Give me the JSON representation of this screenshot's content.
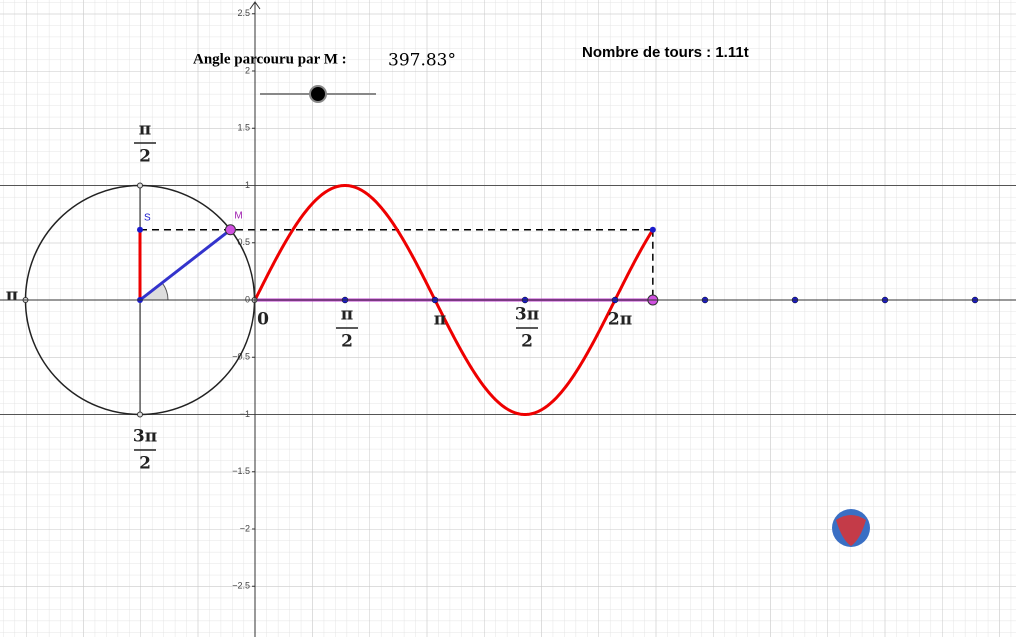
{
  "header": {
    "angle_label": "Angle parcouru par M :",
    "angle_text": "397.83°",
    "angle_degrees": 397.83,
    "turns_text": "Nombre de tours : 1.11t"
  },
  "yticks": [
    2.5,
    2,
    1.5,
    1,
    0.5,
    0,
    {
      "value": -0.5,
      "label": "−0.5"
    },
    {
      "value": -1,
      "label": "−1"
    },
    {
      "value": -1.5,
      "label": "−1.5"
    },
    {
      "value": -2,
      "label": "−2"
    },
    {
      "value": -2.5,
      "label": "−2.5"
    }
  ],
  "guide_lines": [
    1,
    -1
  ],
  "x_labels": [
    {
      "value": 0,
      "text": "0"
    },
    {
      "value": 90,
      "num": "π",
      "den": "2"
    },
    {
      "value": 180,
      "text": "π"
    },
    {
      "value": 270,
      "num": "3π",
      "den": "2"
    },
    {
      "value": 360,
      "text": "2π"
    }
  ],
  "axis_points": [
    90,
    180,
    270,
    360,
    450,
    540,
    630,
    720
  ],
  "circle_labels": {
    "top": {
      "num": "π",
      "den": "2"
    },
    "left": "π",
    "bottom": {
      "num": "3π",
      "den": "2"
    }
  },
  "points": {
    "S": "S",
    "M": "M"
  }
}
